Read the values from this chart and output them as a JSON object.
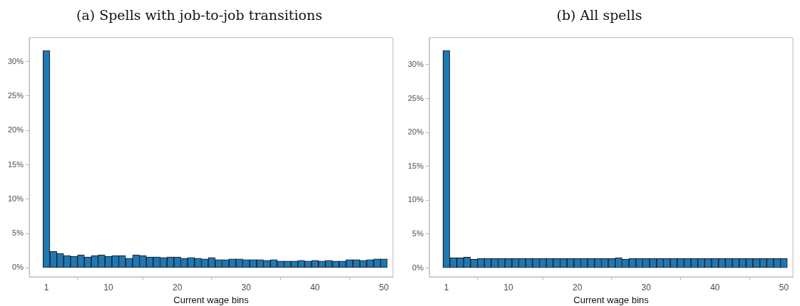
{
  "chart_data": [
    {
      "type": "bar",
      "title": "(a) Spells with job-to-job transitions",
      "xlabel": "Current wage bins",
      "x": [
        1,
        2,
        3,
        4,
        5,
        6,
        7,
        8,
        9,
        10,
        11,
        12,
        13,
        14,
        15,
        16,
        17,
        18,
        19,
        20,
        21,
        22,
        23,
        24,
        25,
        26,
        27,
        28,
        29,
        30,
        31,
        32,
        33,
        34,
        35,
        36,
        37,
        38,
        39,
        40,
        41,
        42,
        43,
        44,
        45,
        46,
        47,
        48,
        49,
        50
      ],
      "values": [
        31.6,
        2.4,
        2.1,
        1.8,
        1.7,
        1.9,
        1.6,
        1.8,
        1.9,
        1.7,
        1.8,
        1.8,
        1.4,
        1.9,
        1.8,
        1.6,
        1.6,
        1.5,
        1.6,
        1.6,
        1.4,
        1.5,
        1.4,
        1.3,
        1.5,
        1.2,
        1.2,
        1.3,
        1.3,
        1.2,
        1.2,
        1.2,
        1.1,
        1.2,
        1.0,
        1.0,
        1.0,
        1.1,
        1.0,
        1.1,
        1.0,
        1.1,
        1.0,
        1.0,
        1.2,
        1.2,
        1.1,
        1.2,
        1.3,
        1.3
      ],
      "color": "#1f77b4",
      "xlim": [
        -1.5,
        51.3
      ],
      "xticks": [
        1,
        10,
        20,
        30,
        40,
        50
      ],
      "ylim": [
        -1.3,
        33.5
      ],
      "yticks": [
        {
          "value": 0,
          "label": "0%"
        },
        {
          "value": 5,
          "label": "5%"
        },
        {
          "value": 10,
          "label": "10%"
        },
        {
          "value": 15,
          "label": "15%"
        },
        {
          "value": 20,
          "label": "20%"
        },
        {
          "value": 25,
          "label": "25%"
        },
        {
          "value": 30,
          "label": "30%"
        }
      ],
      "grid": false,
      "legend": false
    },
    {
      "type": "bar",
      "title": "(b) All spells",
      "xlabel": "Current wage bins",
      "x": [
        1,
        2,
        3,
        4,
        5,
        6,
        7,
        8,
        9,
        10,
        11,
        12,
        13,
        14,
        15,
        16,
        17,
        18,
        19,
        20,
        21,
        22,
        23,
        24,
        25,
        26,
        27,
        28,
        29,
        30,
        31,
        32,
        33,
        34,
        35,
        36,
        37,
        38,
        39,
        40,
        41,
        42,
        43,
        44,
        45,
        46,
        47,
        48,
        49,
        50
      ],
      "values": [
        32.1,
        1.5,
        1.5,
        1.6,
        1.3,
        1.4,
        1.4,
        1.4,
        1.4,
        1.4,
        1.4,
        1.4,
        1.4,
        1.4,
        1.4,
        1.4,
        1.4,
        1.4,
        1.4,
        1.4,
        1.4,
        1.4,
        1.4,
        1.4,
        1.4,
        1.5,
        1.3,
        1.4,
        1.4,
        1.4,
        1.4,
        1.4,
        1.4,
        1.4,
        1.4,
        1.4,
        1.4,
        1.4,
        1.4,
        1.4,
        1.4,
        1.4,
        1.4,
        1.4,
        1.4,
        1.4,
        1.4,
        1.4,
        1.4,
        1.4
      ],
      "color": "#1f77b4",
      "xlim": [
        -1.5,
        51.3
      ],
      "xticks": [
        1,
        10,
        20,
        30,
        40,
        50
      ],
      "ylim": [
        -1.3,
        34
      ],
      "yticks": [
        {
          "value": 0,
          "label": "0%"
        },
        {
          "value": 5,
          "label": "5%"
        },
        {
          "value": 10,
          "label": "10%"
        },
        {
          "value": 15,
          "label": "15%"
        },
        {
          "value": 20,
          "label": "20%"
        },
        {
          "value": 25,
          "label": "25%"
        },
        {
          "value": 30,
          "label": "30%"
        }
      ],
      "grid": false,
      "legend": false
    }
  ]
}
